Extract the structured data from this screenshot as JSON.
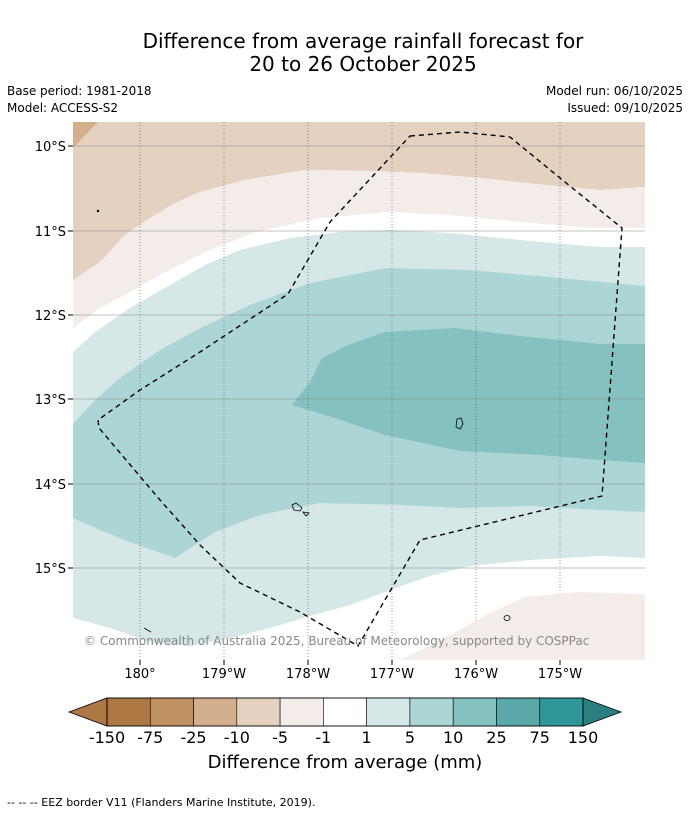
{
  "title_line1": "Difference from average rainfall forecast for",
  "title_line2": "20 to 26 October 2025",
  "base_period": "Base period: 1981-2018",
  "model": "Model: ACCESS-S2",
  "model_run": "Model run: 06/10/2025",
  "issued": "Issued: 09/10/2025",
  "lat_labels": [
    "10°S",
    "11°S",
    "12°S",
    "13°S",
    "14°S",
    "15°S"
  ],
  "lon_labels": [
    "180°",
    "179°W",
    "178°W",
    "177°W",
    "176°W",
    "175°W"
  ],
  "copyright": "© Commonwealth of Australia 2025, Bureau of Meteorology, supported by COSPPac",
  "colorbar": {
    "title": "Difference from average (mm)",
    "tick_labels": [
      "-150",
      "-75",
      "-25",
      "-10",
      "-5",
      "-1",
      "1",
      "5",
      "10",
      "25",
      "75",
      "150"
    ],
    "colors": [
      "#ad7843",
      "#c09163",
      "#d3af8d",
      "#e4d1bf",
      "#f4ece8",
      "#ffffff",
      "#d5e8e7",
      "#acd6d6",
      "#84c1c0",
      "#5ba8a8",
      "#2f9797",
      "#2a7f80"
    ]
  },
  "footnote": "--  --  -- EEZ border V11 (Flanders Marine Institute, 2019).",
  "chart_data": {
    "type": "heatmap",
    "variable": "Difference from average rainfall (mm)",
    "lat_range": [
      "10°S",
      "15°S"
    ],
    "lon_range": [
      "180°",
      "175°W"
    ],
    "levels": [
      -150,
      -75,
      -25,
      -10,
      -5,
      -1,
      1,
      5,
      10,
      25,
      75,
      150
    ]
  }
}
